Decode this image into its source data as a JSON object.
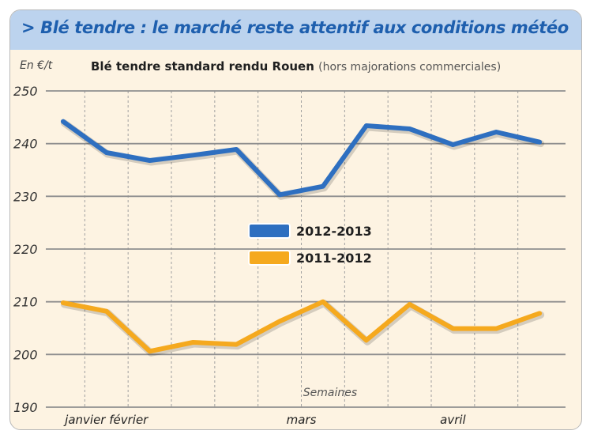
{
  "header": {
    "title": "> Blé tendre : le marché reste attentif aux conditions météo"
  },
  "chart_data": {
    "type": "line",
    "title": "Blé tendre standard rendu Rouen",
    "subtitle": "(hors majorations commerciales)",
    "ylabel": "En €/t",
    "xlabel": "Semaines",
    "ylim": [
      190,
      250
    ],
    "yticks": [
      190,
      200,
      210,
      220,
      230,
      240,
      250
    ],
    "x": [
      1,
      2,
      3,
      4,
      5,
      6,
      7,
      8,
      9,
      10,
      11,
      12
    ],
    "x_tick_labels": [
      {
        "label": "janvier février",
        "x": 2
      },
      {
        "label": "mars",
        "x": 6.5
      },
      {
        "label": "avril",
        "x": 10
      }
    ],
    "grid": {
      "horizontal": true,
      "vertical": true
    },
    "legend_position": "center",
    "series": [
      {
        "name": "2012-2013",
        "color": "#2e6fc0",
        "values": [
          244.2,
          238.3,
          236.8,
          237.8,
          238.9,
          230.3,
          231.9,
          243.4,
          242.8,
          239.8,
          242.2,
          240.3
        ]
      },
      {
        "name": "2011-2012",
        "color": "#f5a91e",
        "values": [
          209.8,
          208.2,
          200.6,
          202.3,
          201.9,
          206.3,
          210.0,
          202.7,
          209.5,
          204.9,
          204.9,
          207.8
        ]
      }
    ]
  }
}
